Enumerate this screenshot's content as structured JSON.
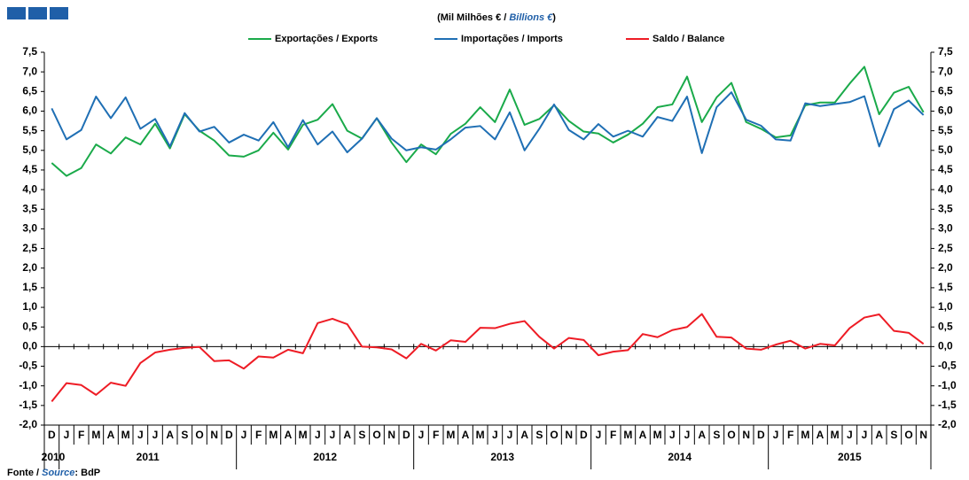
{
  "chart_data": {
    "type": "line",
    "subtitle_parts": [
      "(Mil Milhões € / ",
      "Billions €",
      ")"
    ],
    "source_parts": [
      "Fonte / ",
      "Source",
      ": BdP"
    ],
    "categories": [
      "D",
      "J",
      "F",
      "M",
      "A",
      "M",
      "J",
      "J",
      "A",
      "S",
      "O",
      "N",
      "D",
      "J",
      "F",
      "M",
      "A",
      "M",
      "J",
      "J",
      "A",
      "S",
      "O",
      "N",
      "D",
      "J",
      "F",
      "M",
      "A",
      "M",
      "J",
      "J",
      "A",
      "S",
      "O",
      "N",
      "D",
      "J",
      "F",
      "M",
      "A",
      "M",
      "J",
      "J",
      "A",
      "S",
      "O",
      "N",
      "D",
      "J",
      "F",
      "M",
      "A",
      "M",
      "J",
      "J",
      "A",
      "S",
      "O",
      "N"
    ],
    "year_groups": [
      {
        "label": "2010",
        "span": 1
      },
      {
        "label": "2011",
        "span": 12
      },
      {
        "label": "2012",
        "span": 12
      },
      {
        "label": "2013",
        "span": 12
      },
      {
        "label": "2014",
        "span": 12
      },
      {
        "label": "2015",
        "span": 11
      }
    ],
    "series": [
      {
        "name": "Exportações / Exports",
        "color": "#1aaa4a",
        "values": [
          4.68,
          4.35,
          4.55,
          5.15,
          4.92,
          5.33,
          5.15,
          5.68,
          5.05,
          5.92,
          5.5,
          5.25,
          4.87,
          4.84,
          5.0,
          5.45,
          5.02,
          5.65,
          5.78,
          6.18,
          5.5,
          5.3,
          5.82,
          5.2,
          4.7,
          5.15,
          4.9,
          5.42,
          5.68,
          6.1,
          5.72,
          6.55,
          5.65,
          5.8,
          6.15,
          5.75,
          5.48,
          5.43,
          5.2,
          5.4,
          5.68,
          6.1,
          6.17,
          6.88,
          5.72,
          6.35,
          6.72,
          5.72,
          5.55,
          5.33,
          5.38,
          6.15,
          6.22,
          6.22,
          6.7,
          7.13,
          5.92,
          6.47,
          6.62,
          5.97
        ]
      },
      {
        "name": "Importações / Imports",
        "color": "#1f6fb4",
        "values": [
          6.07,
          5.28,
          5.52,
          6.37,
          5.82,
          6.35,
          5.55,
          5.8,
          5.1,
          5.95,
          5.48,
          5.6,
          5.2,
          5.4,
          5.25,
          5.72,
          5.08,
          5.77,
          5.15,
          5.48,
          4.95,
          5.3,
          5.82,
          5.3,
          5.0,
          5.08,
          5.02,
          5.28,
          5.58,
          5.62,
          5.28,
          5.97,
          5.0,
          5.55,
          6.17,
          5.52,
          5.28,
          5.67,
          5.35,
          5.5,
          5.35,
          5.85,
          5.75,
          6.37,
          4.93,
          6.1,
          6.48,
          5.78,
          5.63,
          5.28,
          5.25,
          6.2,
          6.13,
          6.18,
          6.23,
          6.38,
          5.1,
          6.05,
          6.27,
          5.9
        ]
      },
      {
        "name": "Saldo / Balance",
        "color": "#ee1c25",
        "values": [
          -1.4,
          -0.93,
          -0.98,
          -1.23,
          -0.92,
          -1.0,
          -0.42,
          -0.15,
          -0.08,
          -0.03,
          -0.01,
          -0.37,
          -0.35,
          -0.56,
          -0.25,
          -0.28,
          -0.08,
          -0.17,
          0.6,
          0.71,
          0.57,
          0.0,
          -0.02,
          -0.07,
          -0.3,
          0.07,
          -0.1,
          0.16,
          0.12,
          0.48,
          0.47,
          0.58,
          0.65,
          0.25,
          -0.05,
          0.22,
          0.17,
          -0.22,
          -0.13,
          -0.09,
          0.32,
          0.24,
          0.42,
          0.5,
          0.83,
          0.25,
          0.23,
          -0.05,
          -0.08,
          0.05,
          0.15,
          -0.05,
          0.07,
          0.03,
          0.47,
          0.74,
          0.82,
          0.4,
          0.35,
          0.07
        ]
      }
    ],
    "ylim": [
      -2.0,
      7.5
    ],
    "yticks": [
      {
        "value": -2.0,
        "label": "-2,0"
      },
      {
        "value": -1.5,
        "label": "-1,5"
      },
      {
        "value": -1.0,
        "label": "-1,0"
      },
      {
        "value": -0.5,
        "label": "-0,5"
      },
      {
        "value": 0.0,
        "label": "0,0"
      },
      {
        "value": 0.5,
        "label": "0,5"
      },
      {
        "value": 1.0,
        "label": "1,0"
      },
      {
        "value": 1.5,
        "label": "1,5"
      },
      {
        "value": 2.0,
        "label": "2,0"
      },
      {
        "value": 2.5,
        "label": "2,5"
      },
      {
        "value": 3.0,
        "label": "3,0"
      },
      {
        "value": 3.5,
        "label": "3,5"
      },
      {
        "value": 4.0,
        "label": "4,0"
      },
      {
        "value": 4.5,
        "label": "4,5"
      },
      {
        "value": 5.0,
        "label": "5,0"
      },
      {
        "value": 5.5,
        "label": "5,5"
      },
      {
        "value": 6.0,
        "label": "6,0"
      },
      {
        "value": 6.5,
        "label": "6,5"
      },
      {
        "value": 7.0,
        "label": "7,0"
      },
      {
        "value": 7.5,
        "label": "7,5"
      }
    ],
    "grid": false
  }
}
